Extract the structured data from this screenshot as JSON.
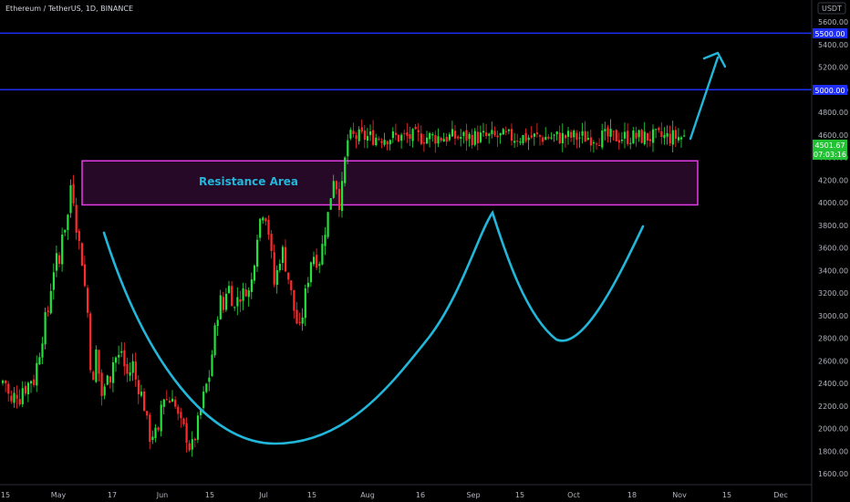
{
  "header": {
    "title": "Ethereum / TetherUS, 1D, BINANCE"
  },
  "axis": {
    "currency_badge": "USDT",
    "y_ticks": [
      "5600.00",
      "5400.00",
      "5200.00",
      "5000.00",
      "4800.00",
      "4600.00",
      "4400.00",
      "4200.00",
      "4000.00",
      "3800.00",
      "3600.00",
      "3400.00",
      "3200.00",
      "3000.00",
      "2800.00",
      "2600.00",
      "2400.00",
      "2200.00",
      "2000.00",
      "1800.00",
      "1600.00"
    ],
    "x_ticks": [
      "15",
      "May",
      "17",
      "Jun",
      "15",
      "Jul",
      "15",
      "Aug",
      "16",
      "Sep",
      "15",
      "Oct",
      "18",
      "Nov",
      "15",
      "Dec"
    ],
    "line_labels": {
      "l5500": "5500.00",
      "l5000": "5000.00"
    },
    "price_badge": {
      "price": "4501.67",
      "countdown": "07:03:16"
    }
  },
  "annotation": {
    "resistance_label": "Resistance Area"
  },
  "colors": {
    "up": "#26a69a",
    "down": "#ef5350",
    "up_bright": "#23e23b",
    "down_bright": "#ff2b2b",
    "level_line": "#1e2ef5",
    "resistance": "#e73bea",
    "curve": "#22b7da",
    "badge_bg": "#1e2ef5"
  },
  "chart_data": {
    "type": "candlestick",
    "title": "Ethereum / TetherUS, 1D, BINANCE",
    "ylim": [
      1500,
      5800
    ],
    "y_scale": "linear",
    "x_labels": [
      "15",
      "May",
      "17",
      "Jun",
      "15",
      "Jul",
      "15",
      "Aug",
      "16",
      "Sep",
      "15",
      "Oct",
      "18",
      "Nov",
      "15",
      "Dec"
    ],
    "horizontal_levels": [
      5500,
      5000
    ],
    "resistance_zone": {
      "low": 3980,
      "high": 4370,
      "label": "Resistance Area"
    },
    "last_price": 4501.67,
    "close_path": [
      [
        0,
        2400
      ],
      [
        4,
        2450
      ],
      [
        8,
        2300
      ],
      [
        12,
        2200
      ],
      [
        16,
        2350
      ],
      [
        20,
        2250
      ],
      [
        24,
        2380
      ],
      [
        28,
        2350
      ],
      [
        32,
        2450
      ],
      [
        36,
        2420
      ],
      [
        40,
        2600
      ],
      [
        44,
        2750
      ],
      [
        48,
        2950
      ],
      [
        52,
        3050
      ],
      [
        56,
        3350
      ],
      [
        60,
        3500
      ],
      [
        64,
        3450
      ],
      [
        68,
        3850
      ],
      [
        72,
        3750
      ],
      [
        76,
        4150
      ],
      [
        78,
        4200
      ],
      [
        80,
        4000
      ],
      [
        84,
        3700
      ],
      [
        88,
        3550
      ],
      [
        92,
        3250
      ],
      [
        96,
        2950
      ],
      [
        100,
        2250
      ],
      [
        104,
        2700
      ],
      [
        108,
        2450
      ],
      [
        112,
        2200
      ],
      [
        116,
        2550
      ],
      [
        120,
        2450
      ],
      [
        124,
        2650
      ],
      [
        128,
        2600
      ],
      [
        132,
        2700
      ],
      [
        136,
        2520
      ],
      [
        140,
        2450
      ],
      [
        144,
        2600
      ],
      [
        148,
        2420
      ],
      [
        152,
        2350
      ],
      [
        156,
        2250
      ],
      [
        160,
        2050
      ],
      [
        164,
        1900
      ],
      [
        168,
        2000
      ],
      [
        172,
        1880
      ],
      [
        176,
        2250
      ],
      [
        180,
        2300
      ],
      [
        184,
        2220
      ],
      [
        188,
        2320
      ],
      [
        192,
        2150
      ],
      [
        196,
        2050
      ],
      [
        200,
        2000
      ],
      [
        204,
        1920
      ],
      [
        208,
        1800
      ],
      [
        212,
        1900
      ],
      [
        216,
        2050
      ],
      [
        220,
        2200
      ],
      [
        224,
        2350
      ],
      [
        228,
        2450
      ],
      [
        232,
        2700
      ],
      [
        236,
        2950
      ],
      [
        240,
        3150
      ],
      [
        244,
        3050
      ],
      [
        248,
        3300
      ],
      [
        252,
        3200
      ],
      [
        256,
        3050
      ],
      [
        260,
        3200
      ],
      [
        264,
        3150
      ],
      [
        268,
        3250
      ],
      [
        272,
        3200
      ],
      [
        276,
        3350
      ],
      [
        280,
        3700
      ],
      [
        284,
        3850
      ],
      [
        288,
        3950
      ],
      [
        292,
        3850
      ],
      [
        296,
        3550
      ],
      [
        300,
        3250
      ],
      [
        304,
        3450
      ],
      [
        308,
        3600
      ],
      [
        312,
        3450
      ],
      [
        316,
        3300
      ],
      [
        320,
        3100
      ],
      [
        324,
        2950
      ],
      [
        328,
        2850
      ],
      [
        332,
        3100
      ],
      [
        336,
        3300
      ],
      [
        340,
        3500
      ],
      [
        344,
        3550
      ],
      [
        348,
        3450
      ],
      [
        352,
        3600
      ],
      [
        356,
        3800
      ],
      [
        360,
        3950
      ],
      [
        364,
        4250
      ],
      [
        368,
        4150
      ],
      [
        372,
        3950
      ],
      [
        376,
        4300
      ],
      [
        380,
        4550
      ],
      [
        384,
        4580
      ]
    ]
  }
}
